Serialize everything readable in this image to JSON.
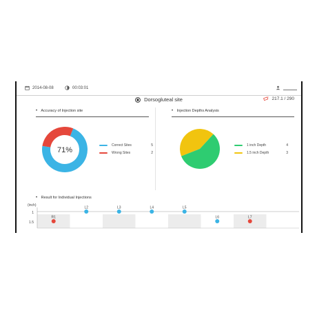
{
  "header": {
    "date": "2014-08-08",
    "timer": "00:03:01",
    "user_name": ""
  },
  "title": "Dorsogluteal site",
  "score": "217.1 / 290",
  "accuracy": {
    "heading": "Accuracy of Injection site",
    "percent_label": "71%",
    "legend": [
      {
        "label": "Correct Sites",
        "value": "5",
        "color": "#3bb4e5"
      },
      {
        "label": "Wrong Sites",
        "value": "2",
        "color": "#e5473b"
      }
    ]
  },
  "depths": {
    "heading": "Injection Depths Analysis",
    "legend": [
      {
        "label": "1 inch Depth",
        "value": "4",
        "color": "#2ecc71"
      },
      {
        "label": "1.5 inch Depth",
        "value": "3",
        "color": "#f1c40f"
      }
    ]
  },
  "results": {
    "heading": "Result for Individual Injections",
    "unit": "(inch)",
    "y_labels": [
      "1",
      "1.5"
    ]
  },
  "chart_data": [
    {
      "type": "pie",
      "title": "Accuracy of Injection site",
      "donut": true,
      "center_label": "71%",
      "categories": [
        "Correct Sites",
        "Wrong Sites"
      ],
      "values": [
        5,
        2
      ],
      "colors": [
        "#3bb4e5",
        "#e5473b"
      ]
    },
    {
      "type": "pie",
      "title": "Injection Depths Analysis",
      "categories": [
        "1 inch Depth",
        "1.5 inch Depth"
      ],
      "values": [
        4,
        3
      ],
      "colors": [
        "#2ecc71",
        "#f1c40f"
      ]
    },
    {
      "type": "scatter",
      "title": "Result for Individual Injections",
      "ylabel": "(inch)",
      "y_ticks": [
        "1",
        "1.5"
      ],
      "points": [
        {
          "label": "R1",
          "depth": 1.5,
          "color": "#e5473b"
        },
        {
          "label": "L2",
          "depth": 1,
          "color": "#3bb4e5"
        },
        {
          "label": "L3",
          "depth": 1,
          "color": "#3bb4e5"
        },
        {
          "label": "L4",
          "depth": 1,
          "color": "#3bb4e5"
        },
        {
          "label": "L5",
          "depth": 1,
          "color": "#3bb4e5"
        },
        {
          "label": "L6",
          "depth": 1.5,
          "color": "#3bb4e5"
        },
        {
          "label": "L7",
          "depth": 1.5,
          "color": "#e5473b"
        }
      ]
    }
  ]
}
